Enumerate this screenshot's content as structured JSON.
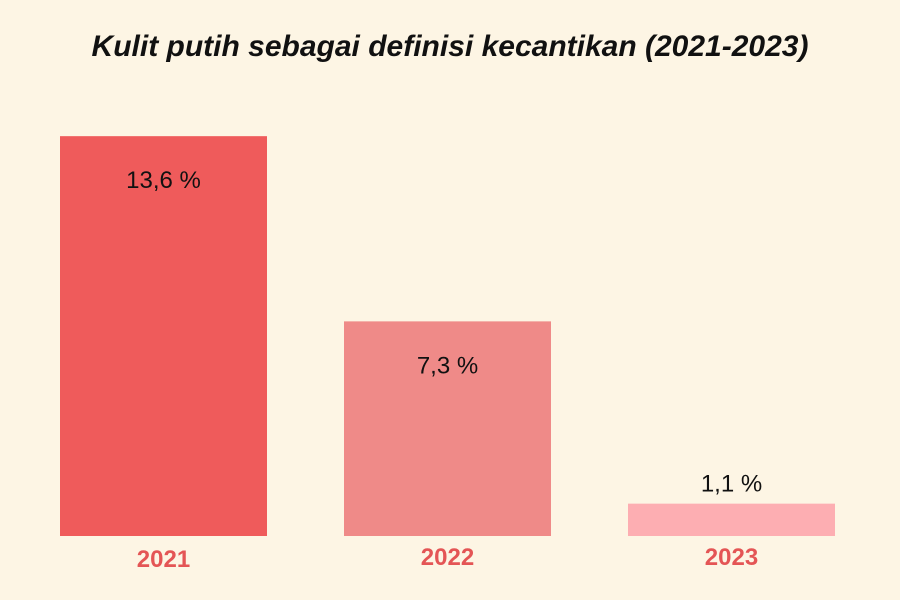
{
  "chart_data": {
    "type": "bar",
    "title": "Kulit putih sebagai definisi kecantikan (2021-2023)",
    "xlabel": "",
    "ylabel": "",
    "categories": [
      "2021",
      "2022",
      "2023"
    ],
    "values": [
      13.6,
      7.3,
      1.1
    ],
    "value_labels": [
      "13,6 %",
      "7,3 %",
      "1,1 %"
    ],
    "bar_colors": [
      "#ef5b5b",
      "#ef8a88",
      "#fdaeb2"
    ],
    "category_label_color": "#e45555",
    "ylim": [
      0,
      15
    ],
    "grid": false,
    "legend": "none"
  }
}
